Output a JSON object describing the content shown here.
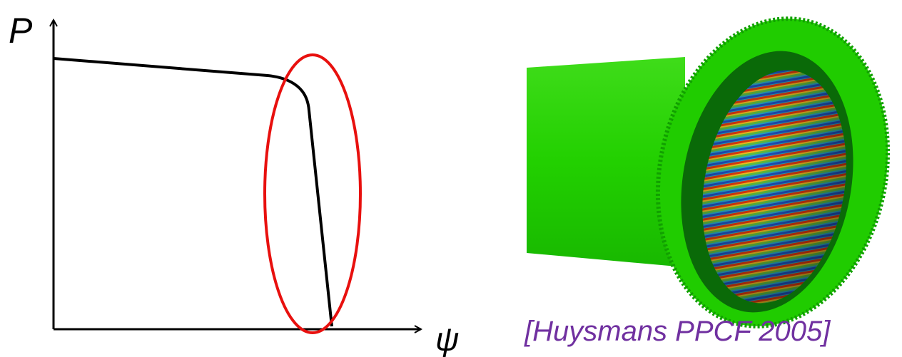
{
  "diagram": {
    "y_axis_label": "P",
    "x_axis_label": "ψ",
    "citation": "[Huysmans PPCF 2005]"
  }
}
